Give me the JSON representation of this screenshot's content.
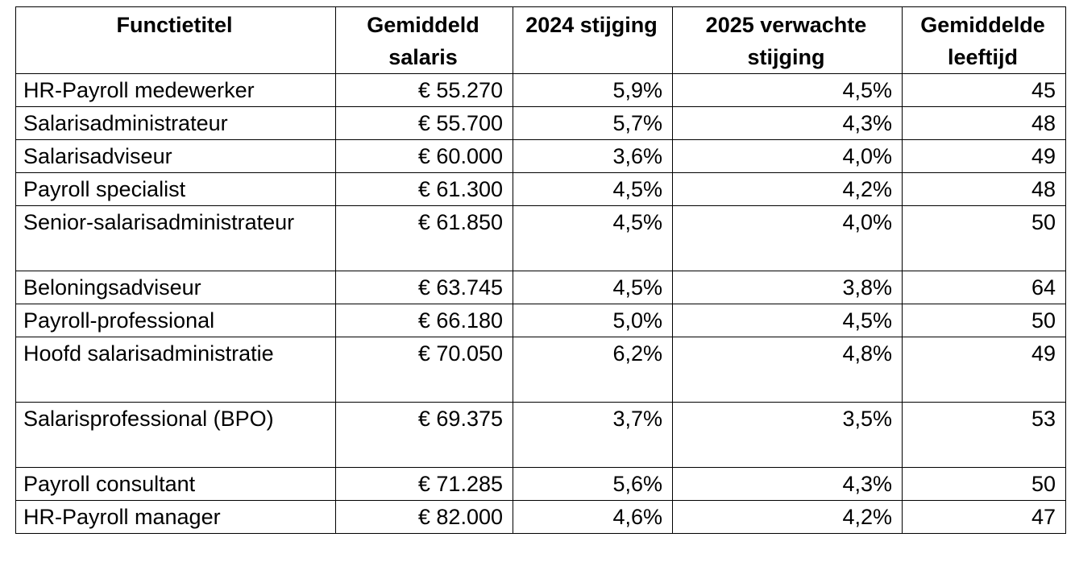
{
  "table": {
    "headers": {
      "title": "Functietitel",
      "salary": "Gemiddeld salaris",
      "increase_2024": "2024 stijging",
      "increase_2025": "2025 verwachte stijging",
      "age": "Gemiddelde leeftijd"
    },
    "rows": [
      {
        "title": "HR-Payroll medewerker",
        "salary": "€ 55.270",
        "increase_2024": "5,9%",
        "increase_2025": "4,5%",
        "age": "45"
      },
      {
        "title": "Salarisadministrateur",
        "salary": "€ 55.700",
        "increase_2024": "5,7%",
        "increase_2025": "4,3%",
        "age": "48"
      },
      {
        "title": "Salarisadviseur",
        "salary": "€ 60.000",
        "increase_2024": "3,6%",
        "increase_2025": "4,0%",
        "age": "49"
      },
      {
        "title": "Payroll specialist",
        "salary": "€ 61.300",
        "increase_2024": "4,5%",
        "increase_2025": "4,2%",
        "age": "48"
      },
      {
        "title": "Senior-salarisadministrateur",
        "salary": "€ 61.850",
        "increase_2024": "4,5%",
        "increase_2025": "4,0%",
        "age": "50"
      },
      {
        "title": "Beloningsadviseur",
        "salary": "€ 63.745",
        "increase_2024": "4,5%",
        "increase_2025": "3,8%",
        "age": "64"
      },
      {
        "title": "Payroll-professional",
        "salary": "€ 66.180",
        "increase_2024": "5,0%",
        "increase_2025": "4,5%",
        "age": "50"
      },
      {
        "title": "Hoofd salarisadministratie",
        "salary": "€ 70.050",
        "increase_2024": "6,2%",
        "increase_2025": "4,8%",
        "age": "49"
      },
      {
        "title": "Salarisprofessional (BPO)",
        "salary": "€ 69.375",
        "increase_2024": "3,7%",
        "increase_2025": "3,5%",
        "age": "53"
      },
      {
        "title": "Payroll consultant",
        "salary": "€ 71.285",
        "increase_2024": "5,6%",
        "increase_2025": "4,3%",
        "age": "50"
      },
      {
        "title": "HR-Payroll manager",
        "salary": "€ 82.000",
        "increase_2024": "4,6%",
        "increase_2025": "4,2%",
        "age": "47"
      }
    ]
  }
}
